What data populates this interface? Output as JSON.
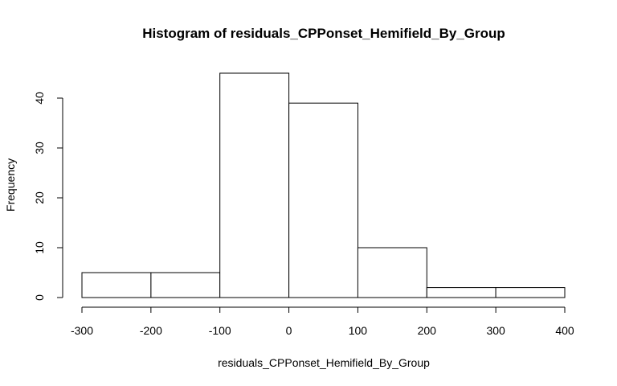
{
  "chart_data": {
    "type": "bar",
    "title": "Histogram of residuals_CPPonset_Hemifield_By_Group",
    "xlabel": "residuals_CPPonset_Hemifield_By_Group",
    "ylabel": "Frequency",
    "bins": [
      {
        "start": -300,
        "end": -200,
        "count": 5
      },
      {
        "start": -200,
        "end": -100,
        "count": 5
      },
      {
        "start": -100,
        "end": 0,
        "count": 45
      },
      {
        "start": 0,
        "end": 100,
        "count": 39
      },
      {
        "start": 100,
        "end": 200,
        "count": 10
      },
      {
        "start": 200,
        "end": 300,
        "count": 2
      },
      {
        "start": 300,
        "end": 400,
        "count": 2
      }
    ],
    "xlim": [
      -300,
      400
    ],
    "x_ticks": [
      -300,
      -200,
      -100,
      0,
      100,
      200,
      300,
      400
    ],
    "y_ticks": [
      0,
      10,
      20,
      30,
      40
    ],
    "grid": false,
    "legend": "none"
  }
}
